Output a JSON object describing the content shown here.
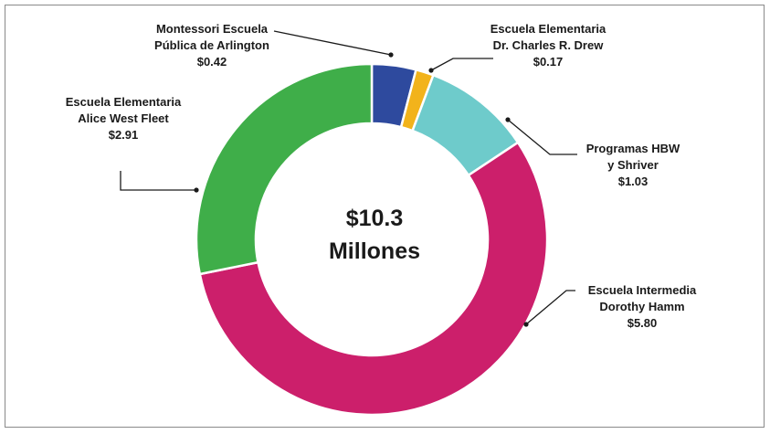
{
  "chart_data": {
    "type": "pie",
    "variant": "donut",
    "center_label": [
      "$10.3",
      "Millones"
    ],
    "slices": [
      {
        "name": [
          "Montessori Escuela",
          "Pública de Arlington"
        ],
        "value_label": "$0.42",
        "value": 0.42,
        "color": "#2e4a9e"
      },
      {
        "name": [
          "Escuela Elementaria",
          "Dr. Charles R. Drew"
        ],
        "value_label": "$0.17",
        "value": 0.17,
        "color": "#f2b31b"
      },
      {
        "name": [
          "Programas HBW",
          "y Shriver"
        ],
        "value_label": "$1.03",
        "value": 1.03,
        "color": "#6ecbcb"
      },
      {
        "name": [
          "Escuela Intermedia",
          "Dorothy Hamm"
        ],
        "value_label": "$5.80",
        "value": 5.8,
        "color": "#cc1f6b"
      },
      {
        "name": [
          "Escuela Elementaria",
          "Alice West Fleet"
        ],
        "value_label": "$2.91",
        "value": 2.91,
        "color": "#3fae49"
      }
    ]
  }
}
